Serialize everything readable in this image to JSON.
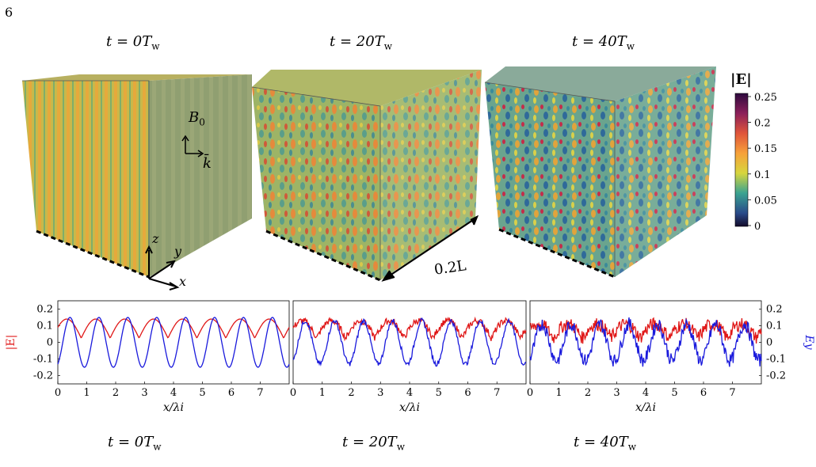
{
  "page_number": "6",
  "top_titles": [
    {
      "prefix": "t = 0",
      "T": "T",
      "sub": "w"
    },
    {
      "prefix": "t = 20",
      "T": "T",
      "sub": "w"
    },
    {
      "prefix": "t = 40",
      "T": "T",
      "sub": "w"
    }
  ],
  "bottom_titles": [
    {
      "prefix": "t = 0",
      "T": "T",
      "sub": "w"
    },
    {
      "prefix": "t = 20",
      "T": "T",
      "sub": "w"
    },
    {
      "prefix": "t = 40",
      "T": "T",
      "sub": "w"
    }
  ],
  "colorbar": {
    "label": "|E|",
    "ticks": [
      "0.25",
      "0.2",
      "0.15",
      "0.1",
      "0.05",
      "0"
    ],
    "colors": [
      "#2d0a3e",
      "#8c1f5a",
      "#e0553a",
      "#f7a13a",
      "#d7d63e",
      "#3aa391",
      "#2a4b8a",
      "#140a2a"
    ]
  },
  "cube_labels": {
    "B0": "B",
    "B0_sub": "0",
    "kbar": "k̄",
    "z": "z",
    "y": "y",
    "x": "x",
    "length": "0.2L"
  },
  "chart_data": [
    {
      "type": "line",
      "title": "t = 0Tw",
      "xlabel": "x/λi",
      "ylabel": "|E|",
      "ylabel_right": "Ey",
      "xlim": [
        0,
        8
      ],
      "ylim": [
        -0.25,
        0.25
      ],
      "xticks": [
        "0",
        "1",
        "2",
        "3",
        "4",
        "5",
        "6",
        "7"
      ],
      "yticks": [
        "0.2",
        "0.1",
        "0",
        "-0.1",
        "-0.2"
      ],
      "series": [
        {
          "name": "|E|",
          "color": "#e01818",
          "amplitude": 0.14,
          "wavelength": 1.0,
          "noise": 0.0
        },
        {
          "name": "Ey",
          "color": "#1a1adc",
          "amplitude": 0.15,
          "wavelength": 1.0,
          "noise": 0.0
        }
      ]
    },
    {
      "type": "line",
      "title": "t = 20Tw",
      "xlabel": "x/λi",
      "xlim": [
        0,
        8
      ],
      "ylim": [
        -0.25,
        0.25
      ],
      "xticks": [
        "0",
        "1",
        "2",
        "3",
        "4",
        "5",
        "6",
        "7"
      ],
      "series": [
        {
          "name": "|E|",
          "color": "#e01818",
          "amplitude": 0.13,
          "wavelength": 1.0,
          "noise": 0.02
        },
        {
          "name": "Ey",
          "color": "#1a1adc",
          "amplitude": 0.13,
          "wavelength": 1.0,
          "noise": 0.015
        }
      ]
    },
    {
      "type": "line",
      "title": "t = 40Tw",
      "xlabel": "x/λi",
      "ylabel_right": "Ey",
      "xlim": [
        0,
        8
      ],
      "ylim": [
        -0.25,
        0.25
      ],
      "xticks": [
        "0",
        "1",
        "2",
        "3",
        "4",
        "5",
        "6",
        "7"
      ],
      "yticks_right": [
        "0.2",
        "0.1",
        "0",
        "-0.1",
        "-0.2"
      ],
      "series": [
        {
          "name": "|E|",
          "color": "#e01818",
          "amplitude": 0.11,
          "wavelength": 1.0,
          "noise": 0.04
        },
        {
          "name": "Ey",
          "color": "#1a1adc",
          "amplitude": 0.11,
          "wavelength": 1.0,
          "noise": 0.04
        }
      ]
    }
  ]
}
